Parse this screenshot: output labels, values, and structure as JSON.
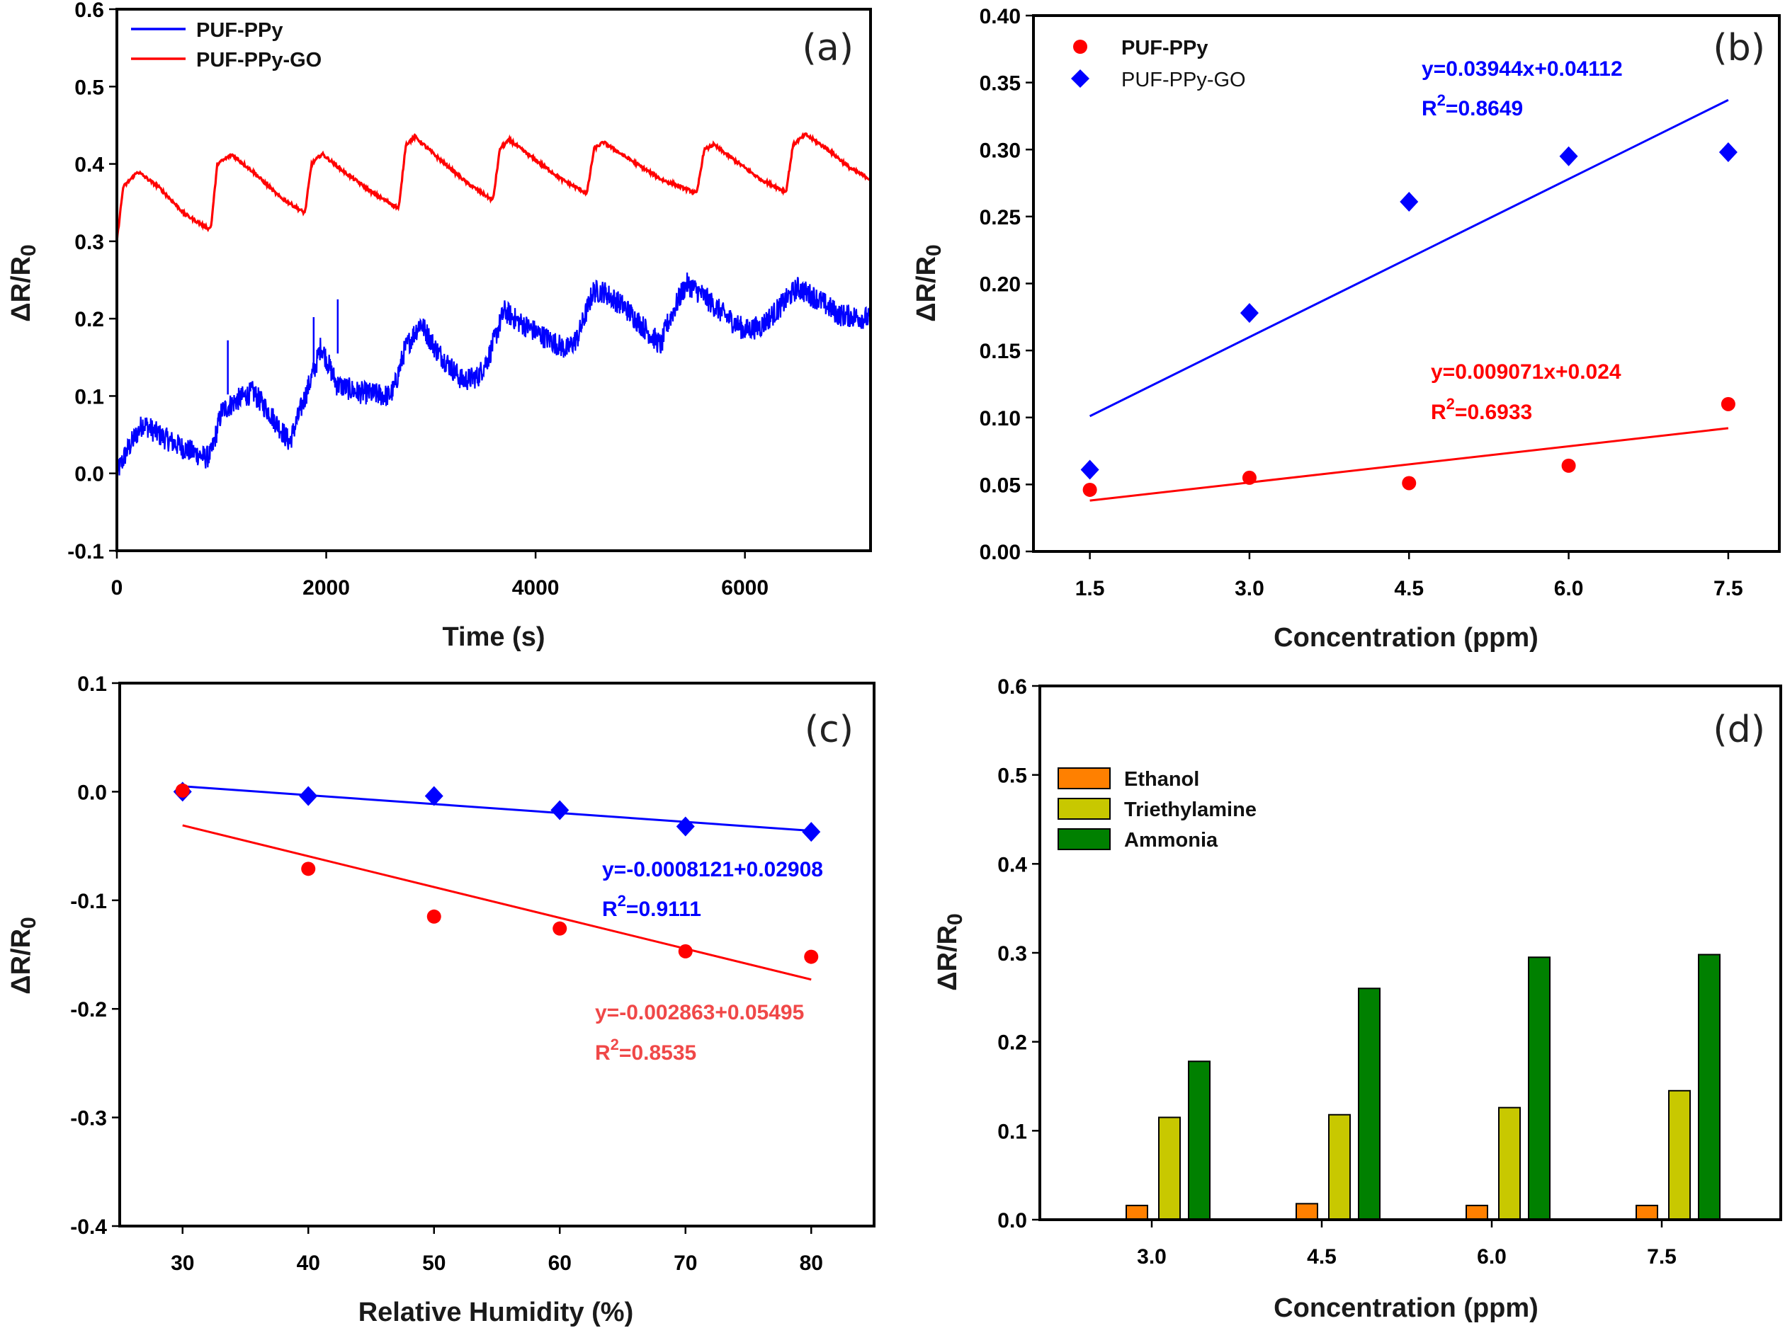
{
  "chart_data": [
    {
      "id": "a",
      "type": "line",
      "panel_label": "(a)",
      "title": "",
      "xlabel": "Time (s)",
      "ylabel": "ΔR/R0",
      "ylabel_main": "ΔR/R",
      "ylabel_sub": "0",
      "xlim": [
        0,
        7200
      ],
      "ylim": [
        -0.1,
        0.6
      ],
      "xticks": [
        0,
        2000,
        4000,
        6000
      ],
      "xtick_labels": [
        "0",
        "2000",
        "4000",
        "6000"
      ],
      "yticks": [
        -0.1,
        0.0,
        0.1,
        0.2,
        0.3,
        0.4,
        0.5,
        0.6
      ],
      "ytick_labels": [
        "-0.1",
        "0.0",
        "0.1",
        "0.2",
        "0.3",
        "0.4",
        "0.5",
        "0.6"
      ],
      "grid": false,
      "legend_position": "top-left",
      "series": [
        {
          "name": "PUF-PPy",
          "color": "#0000FF",
          "noisy": true,
          "x": [
            0,
            100,
            250,
            400,
            600,
            850,
            900,
            1000,
            1150,
            1300,
            1450,
            1650,
            1750,
            1900,
            1950,
            2100,
            2300,
            2600,
            2650,
            2750,
            2900,
            3050,
            3300,
            3450,
            3550,
            3700,
            3850,
            4100,
            4300,
            4400,
            4550,
            4650,
            4850,
            5200,
            5250,
            5400,
            5450,
            5600,
            5800,
            6000,
            6150,
            6300,
            6500,
            6700,
            6900,
            7200
          ],
          "y": [
            0.0,
            0.03,
            0.065,
            0.05,
            0.035,
            0.02,
            0.025,
            0.08,
            0.095,
            0.105,
            0.08,
            0.04,
            0.08,
            0.14,
            0.165,
            0.115,
            0.105,
            0.1,
            0.11,
            0.16,
            0.195,
            0.16,
            0.12,
            0.125,
            0.15,
            0.21,
            0.195,
            0.175,
            0.16,
            0.175,
            0.235,
            0.235,
            0.215,
            0.165,
            0.19,
            0.235,
            0.245,
            0.23,
            0.205,
            0.185,
            0.19,
            0.21,
            0.24,
            0.225,
            0.205,
            0.2
          ],
          "spikes": [
            {
              "x": 1060,
              "y": 0.172
            },
            {
              "x": 2110,
              "y": 0.225
            },
            {
              "x": 1880,
              "y": 0.202
            }
          ]
        },
        {
          "name": "PUF-PPy-GO",
          "color": "#FF0000",
          "noisy": false,
          "x": [
            0,
            60,
            200,
            400,
            650,
            880,
            900,
            960,
            1100,
            1300,
            1550,
            1790,
            1800,
            1860,
            1960,
            2150,
            2450,
            2690,
            2700,
            2760,
            2850,
            3050,
            3350,
            3590,
            3600,
            3660,
            3750,
            3950,
            4250,
            4490,
            4500,
            4560,
            4650,
            4850,
            5200,
            5540,
            5550,
            5610,
            5700,
            5900,
            6150,
            6390,
            6400,
            6460,
            6580,
            6800,
            7000,
            7200
          ],
          "y": [
            0.3,
            0.37,
            0.39,
            0.37,
            0.335,
            0.316,
            0.32,
            0.4,
            0.412,
            0.39,
            0.358,
            0.337,
            0.34,
            0.4,
            0.413,
            0.392,
            0.362,
            0.343,
            0.35,
            0.425,
            0.435,
            0.41,
            0.375,
            0.353,
            0.36,
            0.42,
            0.431,
            0.41,
            0.38,
            0.362,
            0.37,
            0.42,
            0.428,
            0.41,
            0.38,
            0.362,
            0.37,
            0.418,
            0.425,
            0.405,
            0.38,
            0.364,
            0.37,
            0.425,
            0.438,
            0.418,
            0.395,
            0.38
          ]
        }
      ]
    },
    {
      "id": "b",
      "type": "scatter",
      "panel_label": "(b)",
      "title": "",
      "xlabel": "Concentration (ppm)",
      "ylabel": "ΔR/R0",
      "ylabel_main": "ΔR/R",
      "ylabel_sub": "0",
      "xlim": [
        0.97,
        7.98
      ],
      "ylim": [
        0.0,
        0.4
      ],
      "xticks": [
        1.5,
        3.0,
        4.5,
        6.0,
        7.5
      ],
      "xtick_labels": [
        "1.5",
        "3.0",
        "4.5",
        "6.0",
        "7.5"
      ],
      "yticks": [
        0.0,
        0.05,
        0.1,
        0.15,
        0.2,
        0.25,
        0.3,
        0.35,
        0.4
      ],
      "ytick_labels": [
        "0.00",
        "0.05",
        "0.10",
        "0.15",
        "0.20",
        "0.25",
        "0.30",
        "0.35",
        "0.40"
      ],
      "grid": false,
      "legend_position": "top-left",
      "series": [
        {
          "name": "PUF-PPy",
          "marker": "circle",
          "color": "#FF0000",
          "x": [
            1.5,
            3.0,
            4.5,
            6.0,
            7.5
          ],
          "y": [
            0.046,
            0.055,
            0.051,
            0.064,
            0.11
          ],
          "fit": {
            "x": [
              1.5,
              7.5
            ],
            "y": [
              0.038,
              0.092
            ],
            "equation": "y=0.009071x+0.024",
            "r2_label": "R",
            "r2_sup": "2",
            "r2_value": "=0.6933"
          }
        },
        {
          "name": "PUF-PPy-GO",
          "marker": "diamond",
          "color": "#0000FF",
          "x": [
            1.5,
            3.0,
            4.5,
            6.0,
            7.5
          ],
          "y": [
            0.061,
            0.178,
            0.261,
            0.295,
            0.298
          ],
          "fit": {
            "x": [
              1.5,
              7.5
            ],
            "y": [
              0.101,
              0.337
            ],
            "equation": "y=0.03944x+0.04112",
            "r2_label": "R",
            "r2_sup": "2",
            "r2_value": "=0.8649"
          }
        }
      ]
    },
    {
      "id": "c",
      "type": "scatter",
      "panel_label": "(c)",
      "title": "",
      "xlabel": "Relative Humidity (%)",
      "ylabel": "ΔR/R0",
      "ylabel_main": "ΔR/R",
      "ylabel_sub": "0",
      "xlim": [
        25,
        85
      ],
      "ylim": [
        -0.4,
        0.1
      ],
      "xticks": [
        30,
        40,
        50,
        60,
        70,
        80
      ],
      "xtick_labels": [
        "30",
        "40",
        "50",
        "60",
        "70",
        "80"
      ],
      "yticks": [
        -0.4,
        -0.3,
        -0.2,
        -0.1,
        0.0,
        0.1
      ],
      "ytick_labels": [
        "-0.4",
        "-0.3",
        "-0.2",
        "-0.1",
        "0.0",
        "0.1"
      ],
      "grid": false,
      "series": [
        {
          "name": "PUF-PPy-GO",
          "marker": "diamond",
          "color": "#0000FF",
          "x": [
            30,
            40,
            50,
            60,
            70,
            80
          ],
          "y": [
            0.0,
            -0.004,
            -0.004,
            -0.017,
            -0.032,
            -0.037
          ],
          "fit": {
            "x": [
              30,
              80
            ],
            "y": [
              0.005,
              -0.036
            ],
            "equation": "y=-0.0008121+0.02908",
            "r2_label": "R",
            "r2_sup": "2",
            "r2_value": "=0.9111",
            "label_color": "#0000FF"
          }
        },
        {
          "name": "PUF-PPy",
          "marker": "circle",
          "color": "#FF0000",
          "x": [
            30,
            40,
            50,
            60,
            70,
            80
          ],
          "y": [
            0.001,
            -0.071,
            -0.115,
            -0.126,
            -0.147,
            -0.152
          ],
          "fit": {
            "x": [
              30,
              80
            ],
            "y": [
              -0.031,
              -0.173
            ],
            "equation": "y=-0.002863+0.05495",
            "r2_label": "R",
            "r2_sup": "2",
            "r2_value": "=0.8535",
            "label_color": "#F04848"
          }
        }
      ]
    },
    {
      "id": "d",
      "type": "bar",
      "panel_label": "(d)",
      "title": "",
      "xlabel": "Concentration (ppm)",
      "ylabel": "ΔR/R0",
      "ylabel_main": "ΔR/R",
      "ylabel_sub": "0",
      "ylim": [
        0.0,
        0.6
      ],
      "categories": [
        "3.0",
        "4.5",
        "6.0",
        "7.5"
      ],
      "yticks": [
        0.0,
        0.1,
        0.2,
        0.3,
        0.4,
        0.5,
        0.6
      ],
      "ytick_labels": [
        "0.0",
        "0.1",
        "0.2",
        "0.3",
        "0.4",
        "0.5",
        "0.6"
      ],
      "grid": false,
      "legend_position": "top-left",
      "series": [
        {
          "name": "Ethanol",
          "color": "#FF8000",
          "values": [
            0.016,
            0.018,
            0.016,
            0.016
          ]
        },
        {
          "name": "Triethylamine",
          "color": "#C8C800",
          "values": [
            0.115,
            0.118,
            0.126,
            0.145
          ]
        },
        {
          "name": "Ammonia",
          "color": "#008000",
          "values": [
            0.178,
            0.26,
            0.295,
            0.298
          ]
        }
      ]
    }
  ]
}
